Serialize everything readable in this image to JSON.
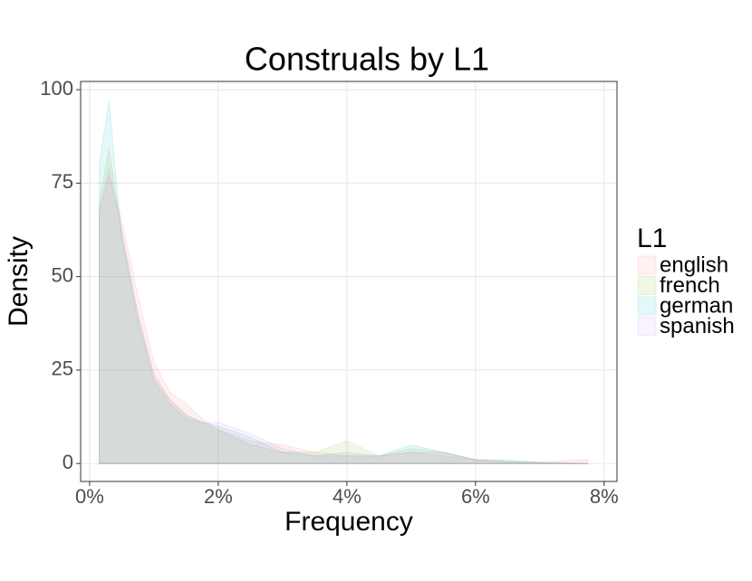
{
  "chart_data": {
    "type": "density",
    "title": "Construals by L1",
    "x_label": "Frequency",
    "y_label": "Density",
    "legend_title": "L1",
    "legend_position": "right",
    "grid": true,
    "x": [
      0.15,
      0.3,
      0.5,
      0.75,
      1,
      1.25,
      1.5,
      1.75,
      2,
      2.5,
      3,
      3.5,
      4,
      4.5,
      5,
      5.5,
      6,
      6.5,
      7,
      7.5,
      7.75
    ],
    "series": [
      {
        "name": "english",
        "color": "#F8766D",
        "values": [
          67,
          77,
          65,
          45,
          27,
          19,
          16,
          12,
          9,
          6,
          5,
          3,
          2,
          2,
          3,
          3,
          1,
          0.5,
          0.3,
          1,
          1
        ]
      },
      {
        "name": "french",
        "color": "#7CAE00",
        "values": [
          70,
          84,
          62,
          40,
          23,
          17,
          13,
          11,
          9,
          5,
          3,
          3,
          6,
          2,
          4,
          3,
          1,
          0.5,
          0.2,
          0.1,
          0
        ]
      },
      {
        "name": "german",
        "color": "#00BFC4",
        "values": [
          80,
          97,
          60,
          38,
          22,
          16,
          12,
          11,
          10,
          7,
          3,
          2,
          3,
          2,
          5,
          3,
          1,
          1,
          0.3,
          0.1,
          0
        ]
      },
      {
        "name": "spanish",
        "color": "#C77CFF",
        "values": [
          68,
          79,
          62,
          40,
          24,
          17,
          13,
          11,
          11,
          8,
          4,
          2,
          2,
          2,
          3,
          2,
          1,
          0.5,
          0.2,
          0.1,
          0
        ]
      }
    ],
    "xlim": [
      -0.14,
      8.2
    ],
    "xticks": [
      {
        "value": 0,
        "label": "0%"
      },
      {
        "value": 2,
        "label": "2%"
      },
      {
        "value": 4,
        "label": "4%"
      },
      {
        "value": 6,
        "label": "6%"
      },
      {
        "value": 8,
        "label": "8%"
      }
    ],
    "ylim": [
      -4.8,
      102.2
    ],
    "yticks": [
      0,
      25,
      50,
      75,
      100
    ]
  }
}
